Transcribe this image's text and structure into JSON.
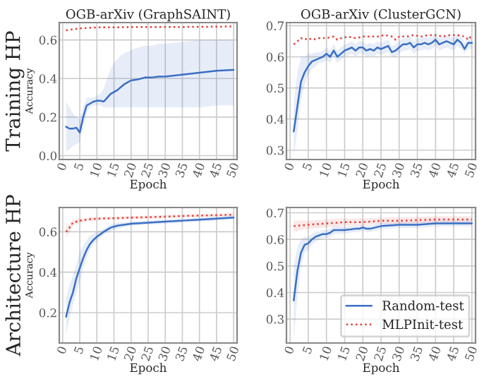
{
  "chart_data": [
    {
      "type": "line",
      "title": "OGB-arXiv (GraphSAINT)",
      "xlabel": "Epoch",
      "ylabel": "Accuracy",
      "annotations": [
        "Training HP"
      ],
      "xlim": [
        -1,
        51
      ],
      "xticks": [
        0,
        5,
        10,
        15,
        20,
        25,
        30,
        35,
        40,
        45,
        50
      ],
      "ylim": [
        -0.02,
        0.69
      ],
      "yticks": [
        {
          "value": 0,
          "label": "0.0"
        },
        0.2,
        0.4,
        0.6
      ],
      "grid": true,
      "series": [
        {
          "color": "#3a6fc4",
          "line_style": "solid",
          "x": [
            1,
            2,
            3,
            4,
            5,
            6,
            7,
            8,
            9,
            10,
            11,
            12,
            13,
            14,
            15,
            16,
            17,
            18,
            19,
            20,
            22,
            24,
            26,
            28,
            30,
            35,
            40,
            45,
            50
          ],
          "values": [
            0.15,
            0.14,
            0.14,
            0.145,
            0.12,
            0.2,
            0.26,
            0.27,
            0.28,
            0.285,
            0.285,
            0.28,
            0.3,
            0.32,
            0.33,
            0.34,
            0.355,
            0.37,
            0.38,
            0.39,
            0.395,
            0.405,
            0.405,
            0.41,
            0.41,
            0.42,
            0.43,
            0.44,
            0.445
          ],
          "lower": [
            0.02,
            0.03,
            0.05,
            0.06,
            0.07,
            0.15,
            0.22,
            0.25,
            0.26,
            0.26,
            0.26,
            0.25,
            0.25,
            0.25,
            0.25,
            0.25,
            0.25,
            0.25,
            0.25,
            0.25,
            0.25,
            0.25,
            0.25,
            0.25,
            0.25,
            0.25,
            0.25,
            0.26,
            0.26
          ],
          "upper": [
            0.28,
            0.25,
            0.22,
            0.2,
            0.19,
            0.25,
            0.3,
            0.3,
            0.3,
            0.31,
            0.32,
            0.35,
            0.4,
            0.45,
            0.48,
            0.5,
            0.52,
            0.53,
            0.54,
            0.55,
            0.56,
            0.57,
            0.57,
            0.58,
            0.58,
            0.59,
            0.6,
            0.6,
            0.6
          ]
        },
        {
          "color": "#e0403a",
          "line_style": "dotted",
          "x": [
            1,
            3,
            5,
            10,
            15,
            20,
            30,
            40,
            50
          ],
          "values": [
            0.65,
            0.655,
            0.66,
            0.665,
            0.665,
            0.667,
            0.667,
            0.668,
            0.67
          ]
        }
      ]
    },
    {
      "type": "line",
      "title": "OGB-arXiv (ClusterGCN)",
      "xlabel": "Epoch",
      "xlim": [
        -1,
        51
      ],
      "xticks": [
        0,
        5,
        10,
        15,
        20,
        25,
        30,
        35,
        40,
        45,
        50
      ],
      "ylim": [
        0.27,
        0.71
      ],
      "yticks": [
        0.3,
        0.4,
        0.5,
        0.6,
        0.7
      ],
      "grid": true,
      "series": [
        {
          "color": "#3a6fc4",
          "line_style": "solid",
          "x": [
            1,
            2,
            3,
            4,
            5,
            6,
            7,
            8,
            9,
            10,
            11,
            12,
            13,
            14,
            15,
            16,
            17,
            18,
            19,
            20,
            21,
            22,
            23,
            24,
            25,
            26,
            27,
            28,
            29,
            30,
            31,
            32,
            33,
            34,
            35,
            36,
            37,
            38,
            39,
            40,
            41,
            42,
            43,
            44,
            45,
            46,
            47,
            48,
            49,
            50
          ],
          "values": [
            0.36,
            0.44,
            0.52,
            0.55,
            0.57,
            0.585,
            0.59,
            0.595,
            0.6,
            0.61,
            0.6,
            0.62,
            0.6,
            0.61,
            0.62,
            0.625,
            0.63,
            0.62,
            0.63,
            0.63,
            0.62,
            0.625,
            0.62,
            0.63,
            0.625,
            0.63,
            0.635,
            0.615,
            0.62,
            0.63,
            0.64,
            0.64,
            0.645,
            0.63,
            0.64,
            0.64,
            0.645,
            0.64,
            0.645,
            0.655,
            0.64,
            0.645,
            0.65,
            0.645,
            0.64,
            0.655,
            0.645,
            0.625,
            0.645,
            0.645
          ],
          "lower": [
            0.28,
            0.36,
            0.46,
            0.51,
            0.54,
            0.56,
            0.57,
            0.58,
            0.58,
            0.59,
            0.58,
            0.6,
            0.58,
            0.59,
            0.6,
            0.605,
            0.61,
            0.6,
            0.61,
            0.61,
            0.6,
            0.605,
            0.6,
            0.61,
            0.605,
            0.61,
            0.615,
            0.6,
            0.6,
            0.61,
            0.62,
            0.62,
            0.625,
            0.61,
            0.62,
            0.62,
            0.625,
            0.62,
            0.625,
            0.635,
            0.62,
            0.625,
            0.63,
            0.625,
            0.62,
            0.635,
            0.625,
            0.61,
            0.625,
            0.625
          ],
          "upper": [
            0.45,
            0.55,
            0.6,
            0.6,
            0.61,
            0.61,
            0.615,
            0.615,
            0.62,
            0.63,
            0.62,
            0.64,
            0.62,
            0.63,
            0.64,
            0.645,
            0.65,
            0.64,
            0.65,
            0.65,
            0.64,
            0.645,
            0.64,
            0.65,
            0.645,
            0.65,
            0.655,
            0.635,
            0.64,
            0.65,
            0.66,
            0.66,
            0.665,
            0.65,
            0.66,
            0.66,
            0.665,
            0.66,
            0.665,
            0.675,
            0.66,
            0.665,
            0.67,
            0.665,
            0.66,
            0.675,
            0.665,
            0.645,
            0.665,
            0.665
          ]
        },
        {
          "color": "#e0403a",
          "line_style": "dotted",
          "x": [
            1,
            2,
            3,
            4,
            5,
            6,
            8,
            10,
            12,
            13,
            14,
            16,
            18,
            20,
            22,
            24,
            26,
            28,
            29,
            30,
            32,
            34,
            36,
            38,
            40,
            42,
            44,
            46,
            48,
            49,
            50
          ],
          "values": [
            0.64,
            0.65,
            0.66,
            0.655,
            0.66,
            0.655,
            0.66,
            0.66,
            0.665,
            0.655,
            0.66,
            0.665,
            0.66,
            0.665,
            0.665,
            0.665,
            0.67,
            0.665,
            0.655,
            0.665,
            0.665,
            0.67,
            0.665,
            0.67,
            0.67,
            0.665,
            0.67,
            0.67,
            0.665,
            0.655,
            0.67
          ]
        }
      ]
    },
    {
      "type": "line",
      "xlabel": "Epoch",
      "ylabel": "Accuracy",
      "annotations": [
        "Architecture HP"
      ],
      "xlim": [
        -1,
        51
      ],
      "xticks": [
        0,
        5,
        10,
        15,
        20,
        25,
        30,
        35,
        40,
        45,
        50
      ],
      "ylim": [
        0.05,
        0.72
      ],
      "yticks": [
        0.2,
        0.4,
        0.6
      ],
      "grid": true,
      "series": [
        {
          "color": "#3a6fc4",
          "line_style": "solid",
          "x": [
            1,
            2,
            3,
            4,
            5,
            6,
            7,
            8,
            9,
            10,
            12,
            14,
            16,
            20,
            25,
            30,
            35,
            40,
            45,
            50
          ],
          "values": [
            0.18,
            0.25,
            0.3,
            0.37,
            0.42,
            0.47,
            0.51,
            0.54,
            0.56,
            0.575,
            0.6,
            0.62,
            0.63,
            0.64,
            0.645,
            0.65,
            0.655,
            0.66,
            0.665,
            0.67
          ],
          "lower": [
            0.09,
            0.17,
            0.24,
            0.3,
            0.35,
            0.42,
            0.47,
            0.51,
            0.54,
            0.555,
            0.585,
            0.605,
            0.615,
            0.63,
            0.635,
            0.64,
            0.645,
            0.65,
            0.655,
            0.66
          ],
          "upper": [
            0.27,
            0.34,
            0.38,
            0.44,
            0.5,
            0.53,
            0.56,
            0.58,
            0.59,
            0.6,
            0.615,
            0.635,
            0.645,
            0.65,
            0.655,
            0.66,
            0.665,
            0.67,
            0.675,
            0.68
          ]
        },
        {
          "color": "#e0403a",
          "line_style": "dotted",
          "x": [
            1,
            2,
            3,
            4,
            5,
            7,
            10,
            15,
            20,
            25,
            30,
            35,
            40,
            45,
            50
          ],
          "values": [
            0.6,
            0.62,
            0.645,
            0.65,
            0.655,
            0.66,
            0.665,
            0.667,
            0.67,
            0.672,
            0.675,
            0.678,
            0.68,
            0.682,
            0.685
          ],
          "lower": [
            0.57,
            0.6,
            0.63,
            0.64,
            0.645,
            0.65,
            0.657,
            0.66,
            0.663,
            0.665,
            0.668,
            0.671,
            0.673,
            0.675,
            0.678
          ],
          "upper": [
            0.63,
            0.64,
            0.66,
            0.66,
            0.665,
            0.67,
            0.673,
            0.675,
            0.677,
            0.679,
            0.682,
            0.685,
            0.687,
            0.689,
            0.692
          ]
        }
      ]
    },
    {
      "type": "line",
      "xlabel": "Epoch",
      "xlim": [
        -1,
        51
      ],
      "xticks": [
        0,
        5,
        10,
        15,
        20,
        25,
        30,
        35,
        40,
        45,
        50
      ],
      "ylim": [
        0.21,
        0.72
      ],
      "yticks": [
        0.3,
        0.4,
        0.5,
        0.6,
        0.7
      ],
      "grid": true,
      "legend": "lower right",
      "series": [
        {
          "name": "Random-test",
          "color": "#3a6fc4",
          "line_style": "solid",
          "x": [
            1,
            2,
            3,
            4,
            5,
            6,
            7,
            8,
            9,
            10,
            11,
            12,
            15,
            18,
            19,
            20,
            21,
            22,
            25,
            30,
            35,
            40,
            45,
            50
          ],
          "values": [
            0.37,
            0.48,
            0.55,
            0.58,
            0.585,
            0.6,
            0.61,
            0.615,
            0.62,
            0.62,
            0.625,
            0.635,
            0.635,
            0.64,
            0.64,
            0.645,
            0.64,
            0.64,
            0.65,
            0.655,
            0.655,
            0.66,
            0.66,
            0.66
          ],
          "lower": [
            0.22,
            0.38,
            0.5,
            0.55,
            0.56,
            0.58,
            0.59,
            0.6,
            0.605,
            0.605,
            0.61,
            0.62,
            0.622,
            0.628,
            0.628,
            0.633,
            0.628,
            0.628,
            0.638,
            0.643,
            0.643,
            0.648,
            0.648,
            0.648
          ],
          "upper": [
            0.5,
            0.57,
            0.6,
            0.61,
            0.61,
            0.62,
            0.63,
            0.63,
            0.635,
            0.635,
            0.64,
            0.65,
            0.648,
            0.652,
            0.652,
            0.657,
            0.652,
            0.652,
            0.662,
            0.667,
            0.667,
            0.672,
            0.672,
            0.672
          ]
        },
        {
          "name": "MLPInit-test",
          "color": "#e0403a",
          "line_style": "dotted",
          "x": [
            1,
            5,
            10,
            15,
            20,
            25,
            30,
            40,
            50
          ],
          "values": [
            0.65,
            0.655,
            0.66,
            0.665,
            0.665,
            0.67,
            0.67,
            0.675,
            0.675
          ],
          "lower": [
            0.63,
            0.64,
            0.645,
            0.652,
            0.653,
            0.658,
            0.658,
            0.663,
            0.663
          ],
          "upper": [
            0.67,
            0.67,
            0.675,
            0.678,
            0.678,
            0.682,
            0.682,
            0.687,
            0.687
          ]
        }
      ]
    }
  ]
}
